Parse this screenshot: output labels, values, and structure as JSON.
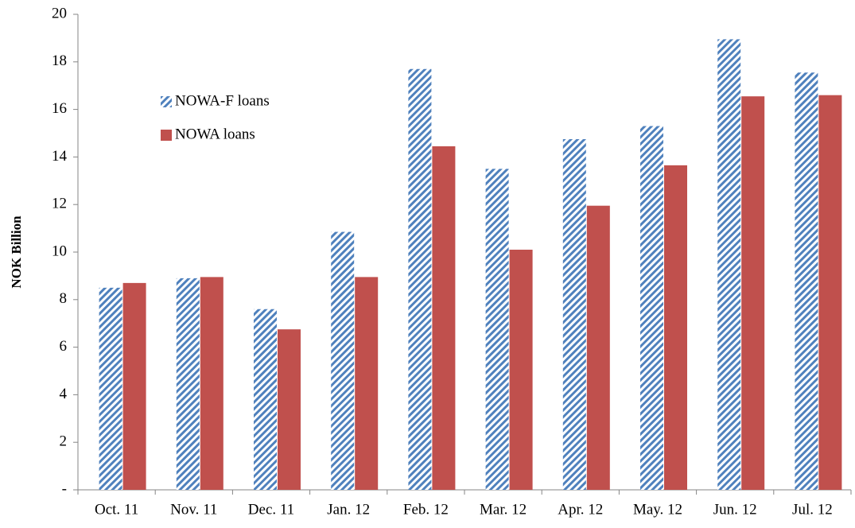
{
  "chart_data": {
    "type": "bar",
    "y_label": "NOK Billion",
    "categories": [
      "Oct. 11",
      "Nov. 11",
      "Dec. 11",
      "Jan. 12",
      "Feb. 12",
      "Mar. 12",
      "Apr. 12",
      "May. 12",
      "Jun. 12",
      "Jul. 12"
    ],
    "series": [
      {
        "name": "NOWA-F loans",
        "color": "#4f81bd",
        "hatch": "////",
        "values": [
          8.5,
          8.9,
          7.6,
          10.85,
          17.7,
          13.5,
          14.75,
          15.3,
          18.95,
          17.55
        ]
      },
      {
        "name": "NOWA loans",
        "color": "#c0504d",
        "values": [
          8.7,
          8.95,
          6.75,
          8.95,
          14.45,
          10.1,
          11.95,
          13.65,
          16.55,
          16.6
        ]
      }
    ],
    "ylim": [
      0,
      20
    ],
    "yticks": [
      {
        "value": 0,
        "label": "-"
      },
      2,
      4,
      6,
      8,
      10,
      12,
      14,
      16,
      18,
      20
    ],
    "legend": "upper left"
  }
}
